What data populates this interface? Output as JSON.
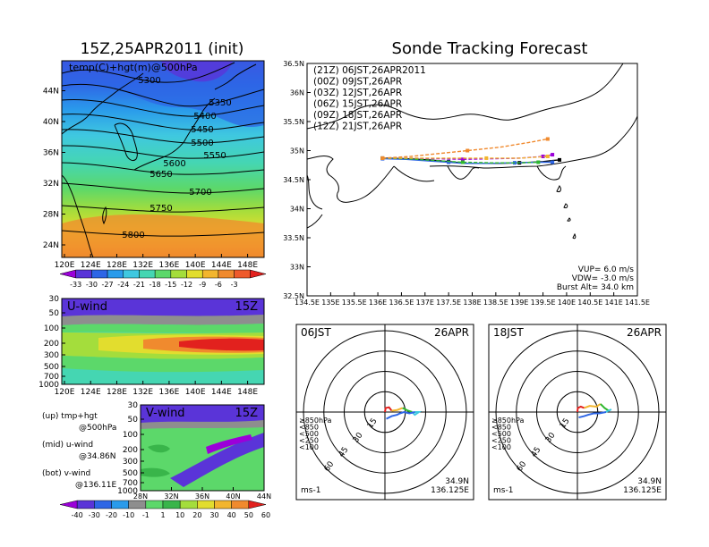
{
  "colors": {
    "temp_scale": [
      "#9B00D9",
      "#5A34D8",
      "#2E66E6",
      "#2A9BEB",
      "#3FC8E0",
      "#45D6B2",
      "#5CD86A",
      "#A4DD3C",
      "#E2DD2E",
      "#F2B52E",
      "#F08A2E",
      "#EE5A2C",
      "#E2211E"
    ],
    "wind_scale": [
      "#9B00D9",
      "#5A34D8",
      "#2E66E6",
      "#2A9BEB",
      "#8E8E8E",
      "#5CD86A",
      "#39B54A",
      "#A4DD3C",
      "#E2DD2E",
      "#F2B52E",
      "#F08A2E",
      "#E2211E"
    ],
    "map_ocean": "#ffffff",
    "series_colors": [
      "#000000",
      "#9B00D9",
      "#2E66E6",
      "#2EB82E",
      "#F2B52E",
      "#F08A2E"
    ]
  },
  "chart_data": [
    {
      "id": "temp_map",
      "type": "heatmap",
      "title": "15Z,25APR2011 (init)",
      "subtitle": "temp(C)+hgt(m)@500hPa",
      "xticks": [
        "120E",
        "124E",
        "128E",
        "132E",
        "136E",
        "140E",
        "144E",
        "148E"
      ],
      "yticks": [
        "24N",
        "28N",
        "32N",
        "36N",
        "40N",
        "44N"
      ],
      "contour_labels": [
        "5300",
        "5350",
        "5400",
        "5450",
        "5500",
        "5550",
        "5600",
        "5650",
        "5700",
        "5750",
        "5800"
      ],
      "colorbar_labels": [
        "-33",
        "-30",
        "-27",
        "-24",
        "-21",
        "-18",
        "-15",
        "-12",
        "-9",
        "-6",
        "-3"
      ]
    },
    {
      "id": "u_wind",
      "type": "heatmap",
      "title": "U-wind",
      "time_label": "15Z",
      "xticks": [
        "120E",
        "124E",
        "128E",
        "132E",
        "136E",
        "140E",
        "144E",
        "148E"
      ],
      "yticks": [
        "30",
        "50",
        "100",
        "200",
        "300",
        "500",
        "700",
        "1000"
      ]
    },
    {
      "id": "v_wind",
      "type": "heatmap",
      "title": "V-wind",
      "time_label": "15Z",
      "xticks": [
        "28N",
        "32N",
        "36N",
        "40N",
        "44N"
      ],
      "yticks": [
        "30",
        "50",
        "100",
        "200",
        "300",
        "500",
        "700",
        "1000"
      ],
      "colorbar_labels": [
        "-40",
        "-30",
        "-20",
        "-10",
        "-1",
        "1",
        "10",
        "20",
        "30",
        "40",
        "50",
        "60"
      ]
    },
    {
      "id": "sonde_tracks",
      "type": "line",
      "title": "Sonde Tracking Forecast",
      "xticks": [
        "134.5E",
        "135E",
        "135.5E",
        "136E",
        "136.5E",
        "137E",
        "137.5E",
        "138E",
        "138.5E",
        "139E",
        "139.5E",
        "140E",
        "140.5E",
        "141E",
        "141.5E"
      ],
      "yticks": [
        "32.5N",
        "33N",
        "33.5N",
        "34N",
        "34.5N",
        "35N",
        "35.5N",
        "36N",
        "36.5N"
      ],
      "xlim": [
        134.5,
        141.5
      ],
      "ylim": [
        32.5,
        36.5
      ],
      "legend_placement": "top-left",
      "series": [
        {
          "name": "(21Z)  06JST,26APR2011",
          "color": "#000000",
          "x": [
            136.1,
            136.6,
            137.1,
            137.5,
            137.9,
            138.5,
            139.0,
            139.5,
            139.7,
            139.85
          ],
          "y": [
            34.87,
            34.86,
            34.84,
            34.81,
            34.78,
            34.78,
            34.79,
            34.81,
            34.83,
            34.84
          ]
        },
        {
          "name": "(00Z)  09JST,26APR",
          "color": "#9B00D9",
          "x": [
            136.1,
            136.7,
            137.3,
            137.8,
            138.4,
            139.0,
            139.5,
            139.7
          ],
          "y": [
            34.87,
            34.87,
            34.86,
            34.85,
            34.86,
            34.87,
            34.9,
            34.93
          ]
        },
        {
          "name": "(03Z)  12JST,26APR",
          "color": "#2E66E6",
          "x": [
            136.1,
            136.6,
            137.1,
            137.5,
            137.8,
            138.3,
            138.9,
            139.4,
            139.7
          ],
          "y": [
            34.86,
            34.85,
            34.82,
            34.8,
            34.78,
            34.78,
            34.79,
            34.8,
            34.8
          ]
        },
        {
          "name": "(06Z)  15JST,26APR",
          "color": "#2EB82E",
          "x": [
            136.1,
            136.6,
            137.2,
            137.8,
            138.4,
            139.0,
            139.4
          ],
          "y": [
            34.87,
            34.86,
            34.83,
            34.8,
            34.79,
            34.79,
            34.8
          ]
        },
        {
          "name": "(09Z)  18JST,26APR",
          "color": "#F2B52E",
          "x": [
            136.1,
            136.8,
            137.5,
            138.3,
            139.0,
            139.6
          ],
          "y": [
            34.87,
            34.87,
            34.87,
            34.87,
            34.87,
            34.9
          ]
        },
        {
          "name": "(12Z)  21JST,26APR",
          "color": "#F08A2E",
          "x": [
            136.1,
            136.7,
            137.3,
            137.9,
            138.6,
            139.2,
            139.6
          ],
          "y": [
            34.87,
            34.9,
            34.95,
            35.0,
            35.06,
            35.14,
            35.2
          ]
        }
      ],
      "annotations": [
        "VUP=  6.0  m/s",
        "VDW= -3.0  m/s",
        "Burst Alt=  34.0  km"
      ]
    },
    {
      "id": "hodo_06",
      "type": "line",
      "title_left": "06JST",
      "title_right": "26APR",
      "ring_labels": [
        "15",
        "30",
        "45",
        "60"
      ],
      "levels": [
        "≥850hPa",
        "<850",
        "<500",
        "<250",
        "<100"
      ],
      "level_colors": [
        "#E2211E",
        "#F2B52E",
        "#2EB82E",
        "#3FC8E0",
        "#2E66E6"
      ],
      "unit": "ms-1",
      "location": [
        "34.9N",
        "136.125E"
      ],
      "series": [
        {
          "color": "#E2211E",
          "x": [
            0,
            0.5,
            3,
            5
          ],
          "y": [
            0,
            3,
            3.5,
            1
          ]
        },
        {
          "color": "#F2B52E",
          "x": [
            5,
            9,
            13
          ],
          "y": [
            1,
            1.5,
            3
          ]
        },
        {
          "color": "#2EB82E",
          "x": [
            13,
            17,
            20
          ],
          "y": [
            3,
            1,
            0
          ]
        },
        {
          "color": "#3FC8E0",
          "x": [
            20,
            22,
            25,
            22
          ],
          "y": [
            0,
            -2,
            0,
            0
          ]
        },
        {
          "color": "#2E66E6",
          "x": [
            22,
            18,
            14,
            11,
            9,
            5,
            1
          ],
          "y": [
            0,
            -1,
            0,
            -1,
            -2,
            -3,
            -5
          ]
        }
      ]
    },
    {
      "id": "hodo_18",
      "type": "line",
      "title_left": "18JST",
      "title_right": "26APR",
      "ring_labels": [
        "15",
        "30",
        "45",
        "60"
      ],
      "levels": [
        "≥850hPa",
        "<850",
        "<500",
        "<250",
        "<100"
      ],
      "level_colors": [
        "#E2211E",
        "#F2B52E",
        "#2EB82E",
        "#3FC8E0",
        "#2E66E6"
      ],
      "unit": "ms-1",
      "location": [
        "34.9N",
        "136.125E"
      ],
      "series": [
        {
          "color": "#E2211E",
          "x": [
            0,
            0.3,
            2.5,
            5
          ],
          "y": [
            0,
            3,
            4,
            3
          ]
        },
        {
          "color": "#F2B52E",
          "x": [
            5,
            9,
            14,
            17
          ],
          "y": [
            3,
            4.5,
            4,
            6
          ]
        },
        {
          "color": "#2EB82E",
          "x": [
            17,
            20,
            23
          ],
          "y": [
            6,
            3,
            1
          ]
        },
        {
          "color": "#3FC8E0",
          "x": [
            23,
            25,
            21
          ],
          "y": [
            1,
            2,
            0
          ]
        },
        {
          "color": "#2E66E6",
          "x": [
            21,
            16,
            12,
            8,
            5,
            1
          ],
          "y": [
            0,
            -1,
            -1,
            -2,
            -3,
            -4
          ]
        }
      ]
    }
  ],
  "side_notes": {
    "up_line1": "(up) tmp+hgt",
    "up_line2": "@500hPa",
    "mid_line1": "(mid) u-wind",
    "mid_line2": "@34.86N",
    "bot_line1": "(bot) v-wind",
    "bot_line2": "@136.11E"
  }
}
